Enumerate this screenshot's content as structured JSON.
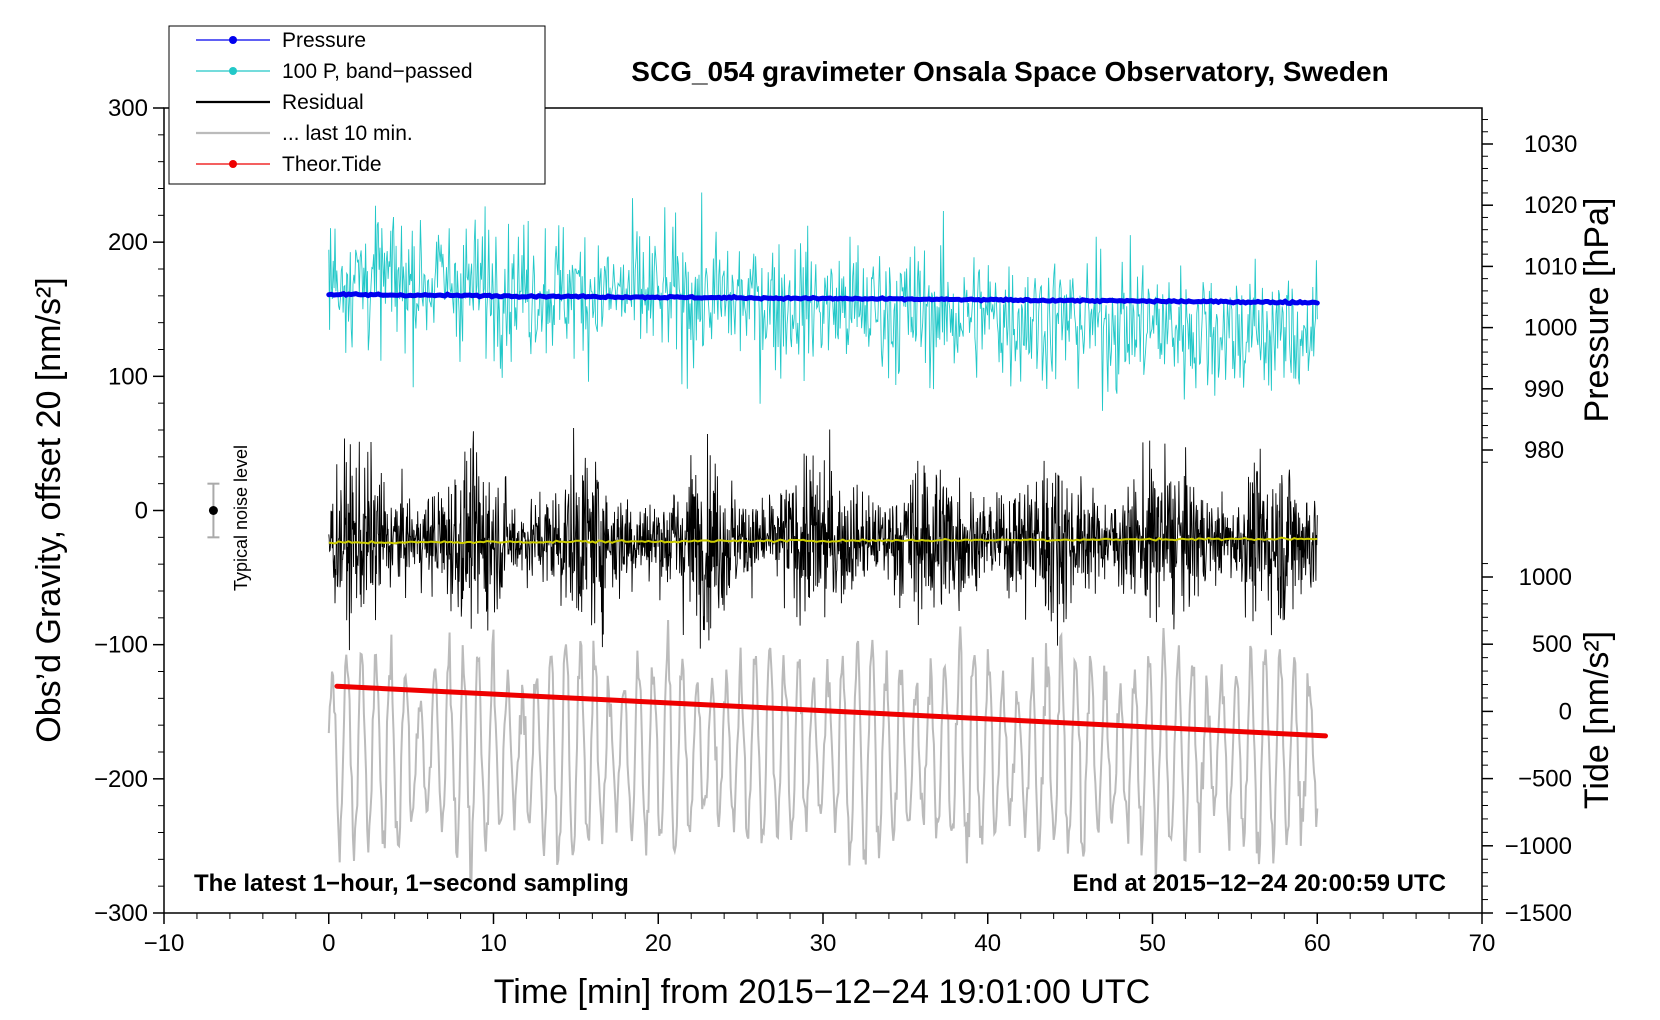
{
  "chart_data": {
    "type": "line",
    "title": "SCG_054 gravimeter Onsala Space Observatory, Sweden",
    "xlabel": "Time [min] from 2015−12−24 19:01:00 UTC",
    "ylabel_left": "Obs’d Gravity, offset 20 [nm/s²]",
    "ylabel_right_top": "Pressure [hPa]",
    "ylabel_right_bottom": "Tide [nm/s²]",
    "xlim": [
      -10,
      70
    ],
    "ylim_left": [
      -300,
      300
    ],
    "x_ticks": [
      -10,
      0,
      10,
      20,
      30,
      40,
      50,
      60,
      70
    ],
    "x_tick_labels": [
      "−10",
      "0",
      "10",
      "20",
      "30",
      "40",
      "50",
      "60",
      "70"
    ],
    "y_ticks_left": [
      300,
      200,
      100,
      0,
      -100,
      -200,
      -300
    ],
    "y_tick_labels_left": [
      "300",
      "200",
      "100",
      "0",
      "−100",
      "−200",
      "−300"
    ],
    "pressure_axis": {
      "ticks": [
        1030,
        1020,
        1010,
        1000,
        990,
        980
      ],
      "tick_labels": [
        "1030",
        "1020",
        "1010",
        "1000",
        "990",
        "980"
      ]
    },
    "tide_axis": {
      "ticks": [
        1000,
        500,
        0,
        -500,
        -1000,
        -1500
      ],
      "tick_labels": [
        "1000",
        "500",
        "0",
        "−500",
        "−1000",
        "−1500"
      ]
    },
    "legend": [
      {
        "label": "Pressure",
        "color": "#0000ee",
        "marker": true
      },
      {
        "label": "100 P, band−passed",
        "color": "#22c8c8",
        "marker": true
      },
      {
        "label": "Residual",
        "color": "#000000",
        "marker": false
      },
      {
        "label": "... last 10 min.",
        "color": "#bbbbbb",
        "marker": false
      },
      {
        "label": "Theor.Tide",
        "color": "#ee0000",
        "marker": true
      }
    ],
    "series": [
      {
        "name": "Pressure",
        "color": "#0000ee",
        "axis": "left",
        "t_range": [
          0,
          60
        ],
        "start_value": 161,
        "end_value": 155,
        "description": "nearly flat, slowly decreasing"
      },
      {
        "name": "100 P, band−passed",
        "color": "#22c8c8",
        "axis": "left",
        "t_range": [
          0,
          60
        ],
        "center_start": 175,
        "center_end": 130,
        "amplitude": 50
      },
      {
        "name": "Residual",
        "color": "#000000",
        "axis": "left",
        "t_range": [
          0,
          60
        ],
        "center": -22,
        "amplitude": 70
      },
      {
        "name": "Residual smoothed",
        "color": "#cccc00",
        "axis": "left",
        "t_range": [
          0,
          60
        ],
        "start_value": -24,
        "end_value": -21
      },
      {
        "name": "... last 10 min.",
        "color": "#bbbbbb",
        "axis": "left",
        "t_range": [
          0,
          60
        ],
        "center": -180,
        "amplitude": 75
      },
      {
        "name": "Theor.Tide",
        "color": "#ee0000",
        "axis": "left",
        "t_range": [
          0.5,
          60.5
        ],
        "start_value": -131,
        "end_value": -168
      }
    ],
    "noise_level": {
      "label": "Typical noise level",
      "x": -7,
      "center": 0,
      "error": 20
    },
    "annotations": {
      "bottom_left": "The latest 1−hour, 1−second sampling",
      "bottom_right": "End at 2015−12−24 20:00:59 UTC"
    }
  }
}
